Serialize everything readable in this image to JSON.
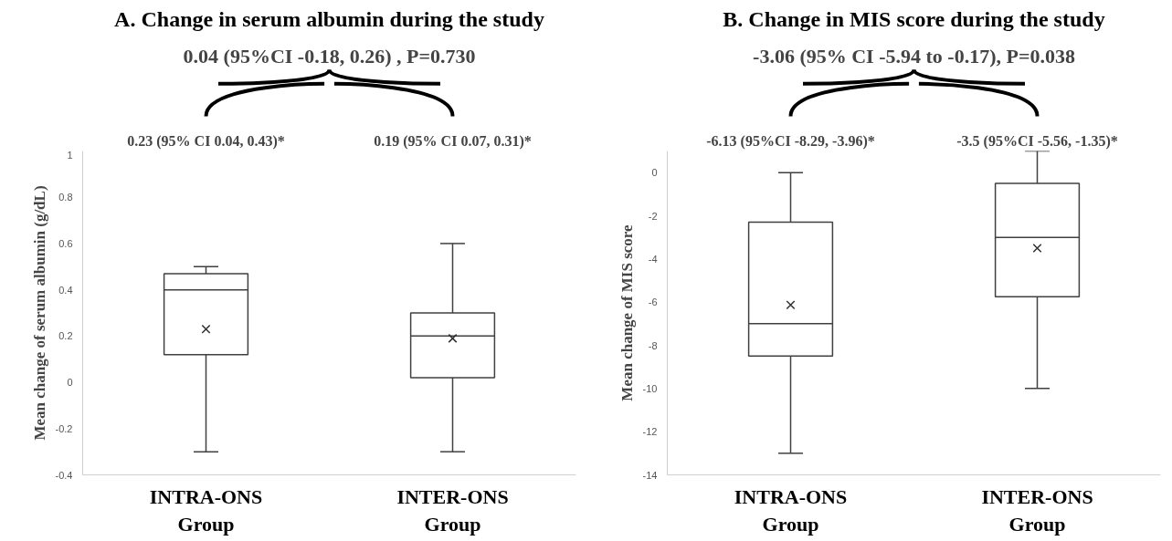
{
  "chart_data": [
    {
      "type": "box",
      "title": "A. Change in serum albumin during the study",
      "ylabel": "Mean change of serum albumin (g/dL)",
      "categories": [
        "INTRA-ONS Group",
        "INTER-ONS Group"
      ],
      "boxes": [
        {
          "low": -0.3,
          "q1": 0.12,
          "median": 0.4,
          "q3": 0.47,
          "high": 0.5,
          "mean": 0.23
        },
        {
          "low": -0.3,
          "q1": 0.02,
          "median": 0.2,
          "q3": 0.3,
          "high": 0.6,
          "mean": 0.19
        }
      ],
      "ylim": [
        -0.4,
        1
      ],
      "yticks": [
        -0.4,
        -0.2,
        0,
        0.2,
        0.4,
        0.6,
        0.8,
        1
      ],
      "grid": false,
      "annotations": [
        "0.04 (95%CI -0.18, 0.26) , P=0.730",
        "0.23 (95% CI 0.04, 0.43)*",
        "0.19 (95% CI 0.07, 0.31)*"
      ]
    },
    {
      "type": "box",
      "title": "B. Change in MIS score during the study",
      "ylabel": "Mean change of MIS score",
      "categories": [
        "INTRA-ONS Group",
        "INTER-ONS Group"
      ],
      "boxes": [
        {
          "low": -13,
          "q1": -8.5,
          "median": -7,
          "q3": -2.3,
          "high": 0,
          "mean": -6.13
        },
        {
          "low": -10,
          "q1": -5.75,
          "median": -3,
          "q3": -0.5,
          "high": 1,
          "mean": -3.5
        }
      ],
      "ylim": [
        -14,
        1
      ],
      "yticks": [
        -14,
        -12,
        -10,
        -8,
        -6,
        -4,
        -2,
        0
      ],
      "grid": false,
      "annotations": [
        "-3.06 (95% CI -5.94 to -0.17), P=0.038",
        "-6.13 (95%CI -8.29, -3.96)*",
        "-3.5 (95%CI -5.56, -1.35)*"
      ]
    }
  ]
}
